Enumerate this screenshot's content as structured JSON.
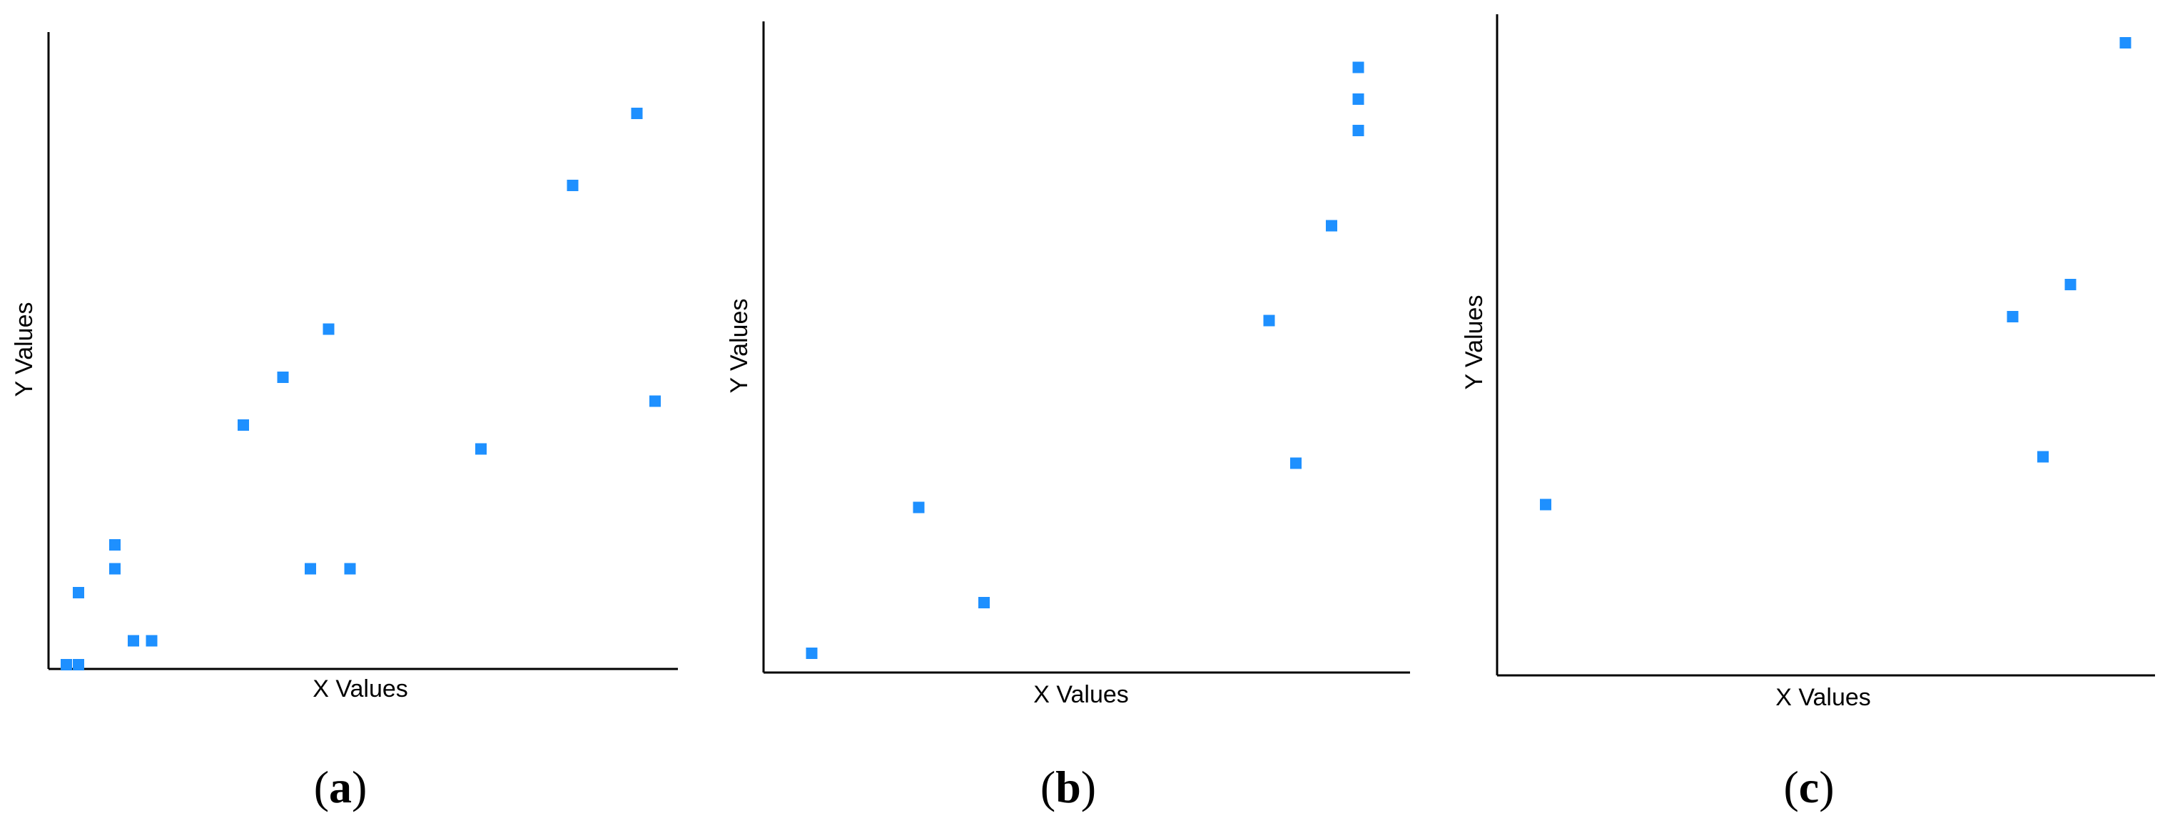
{
  "panels": [
    {
      "caption_open": "(",
      "caption_letter": "a",
      "caption_close": ")",
      "chart": {
        "type": "scatter",
        "title": "",
        "xlabel": "X Values",
        "ylabel": "Y Values",
        "xlim": [
          0,
          100
        ],
        "ylim": [
          0,
          100
        ],
        "grid": false,
        "legend": "none",
        "marker": "square",
        "color": "#1E90FF",
        "points": [
          {
            "x": 1.5,
            "y": 0
          },
          {
            "x": 3.5,
            "y": 0
          },
          {
            "x": 3.5,
            "y": 12
          },
          {
            "x": 9.5,
            "y": 16
          },
          {
            "x": 9.5,
            "y": 20
          },
          {
            "x": 12.5,
            "y": 4
          },
          {
            "x": 15.5,
            "y": 4
          },
          {
            "x": 30.5,
            "y": 40
          },
          {
            "x": 37,
            "y": 48
          },
          {
            "x": 44.5,
            "y": 56
          },
          {
            "x": 41.5,
            "y": 16
          },
          {
            "x": 48,
            "y": 16
          },
          {
            "x": 69.5,
            "y": 36
          },
          {
            "x": 84.5,
            "y": 80
          },
          {
            "x": 95,
            "y": 92
          },
          {
            "x": 98,
            "y": 44
          }
        ]
      }
    },
    {
      "caption_open": "(",
      "caption_letter": "b",
      "caption_close": ")",
      "chart": {
        "type": "scatter",
        "title": "",
        "xlabel": "X Values",
        "ylabel": "Y Values",
        "xlim": [
          0,
          100
        ],
        "ylim": [
          0,
          100
        ],
        "grid": false,
        "legend": "none",
        "marker": "square",
        "color": "#1E90FF",
        "points": [
          {
            "x": 4,
            "y": 2.5
          },
          {
            "x": 22,
            "y": 25.5
          },
          {
            "x": 33,
            "y": 10.5
          },
          {
            "x": 81,
            "y": 55
          },
          {
            "x": 85.5,
            "y": 32.5
          },
          {
            "x": 91.5,
            "y": 70
          },
          {
            "x": 96,
            "y": 85
          },
          {
            "x": 96,
            "y": 90
          },
          {
            "x": 96,
            "y": 95
          }
        ]
      }
    },
    {
      "caption_open": "(",
      "caption_letter": "c",
      "caption_close": ")",
      "chart": {
        "type": "scatter",
        "title": "",
        "xlabel": "X Values",
        "ylabel": "Y Values",
        "xlim": [
          0,
          100
        ],
        "ylim": [
          0,
          100
        ],
        "grid": false,
        "legend": "none",
        "marker": "square",
        "color": "#1E90FF",
        "points": [
          {
            "x": 4,
            "y": 25.5
          },
          {
            "x": 80.5,
            "y": 55
          },
          {
            "x": 85.5,
            "y": 33
          },
          {
            "x": 90,
            "y": 60
          },
          {
            "x": 99,
            "y": 98
          }
        ]
      }
    }
  ]
}
